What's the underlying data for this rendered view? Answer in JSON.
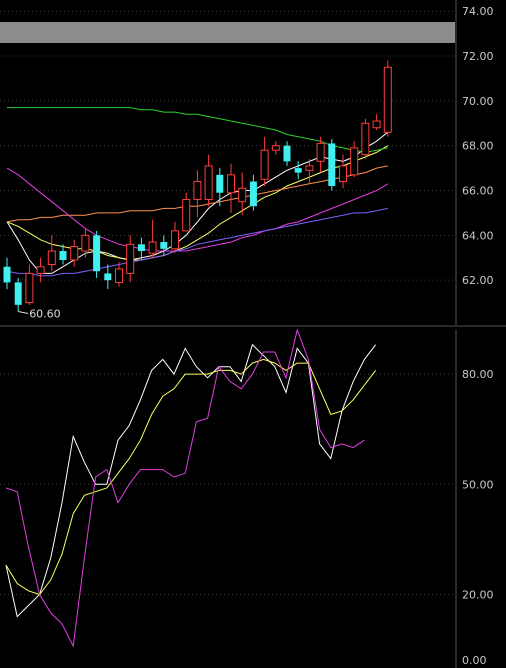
{
  "chart_data": [
    {
      "type": "candlestick",
      "title": "",
      "ylim": [
        60.0,
        74.5
      ],
      "yticks": [
        "74.00",
        "72.00",
        "70.00",
        "68.00",
        "66.00",
        "64.00",
        "62.00"
      ],
      "grid": true,
      "low_marker": {
        "label": "60.60",
        "index": 1
      },
      "candles": [
        {
          "o": 62.6,
          "c": 61.9,
          "h": 63.0,
          "l": 61.6
        },
        {
          "o": 61.9,
          "c": 60.9,
          "h": 62.1,
          "l": 60.6
        },
        {
          "o": 61.0,
          "c": 62.3,
          "h": 62.7,
          "l": 60.9
        },
        {
          "o": 62.3,
          "c": 62.6,
          "h": 63.0,
          "l": 61.9
        },
        {
          "o": 62.7,
          "c": 63.3,
          "h": 64.0,
          "l": 62.4
        },
        {
          "o": 63.3,
          "c": 62.9,
          "h": 63.6,
          "l": 62.7
        },
        {
          "o": 62.9,
          "c": 63.5,
          "h": 63.8,
          "l": 62.6
        },
        {
          "o": 63.3,
          "c": 64.0,
          "h": 64.3,
          "l": 63.0
        },
        {
          "o": 64.0,
          "c": 62.4,
          "h": 64.2,
          "l": 62.1
        },
        {
          "o": 62.3,
          "c": 62.0,
          "h": 62.7,
          "l": 61.6
        },
        {
          "o": 61.9,
          "c": 62.5,
          "h": 62.8,
          "l": 61.7
        },
        {
          "o": 62.3,
          "c": 63.6,
          "h": 64.0,
          "l": 61.9
        },
        {
          "o": 63.6,
          "c": 63.3,
          "h": 63.9,
          "l": 62.9
        },
        {
          "o": 63.2,
          "c": 63.7,
          "h": 64.7,
          "l": 63.0
        },
        {
          "o": 63.7,
          "c": 63.4,
          "h": 64.0,
          "l": 63.1
        },
        {
          "o": 63.4,
          "c": 64.2,
          "h": 64.6,
          "l": 63.2
        },
        {
          "o": 64.2,
          "c": 65.6,
          "h": 65.9,
          "l": 64.2
        },
        {
          "o": 65.6,
          "c": 66.4,
          "h": 66.9,
          "l": 64.8
        },
        {
          "o": 65.6,
          "c": 67.1,
          "h": 67.6,
          "l": 65.3
        },
        {
          "o": 66.7,
          "c": 65.9,
          "h": 67.0,
          "l": 65.3
        },
        {
          "o": 65.9,
          "c": 66.7,
          "h": 67.2,
          "l": 65.0
        },
        {
          "o": 65.5,
          "c": 66.1,
          "h": 66.8,
          "l": 64.9
        },
        {
          "o": 66.4,
          "c": 65.3,
          "h": 66.7,
          "l": 65.1
        },
        {
          "o": 66.5,
          "c": 67.8,
          "h": 68.4,
          "l": 66.2
        },
        {
          "o": 67.8,
          "c": 68.0,
          "h": 68.2,
          "l": 67.6
        },
        {
          "o": 68.0,
          "c": 67.3,
          "h": 68.2,
          "l": 67.1
        },
        {
          "o": 67.0,
          "c": 66.8,
          "h": 67.3,
          "l": 66.5
        },
        {
          "o": 66.9,
          "c": 67.1,
          "h": 67.4,
          "l": 66.3
        },
        {
          "o": 67.3,
          "c": 68.1,
          "h": 68.4,
          "l": 66.8
        },
        {
          "o": 68.1,
          "c": 66.2,
          "h": 68.3,
          "l": 66.0
        },
        {
          "o": 66.4,
          "c": 67.1,
          "h": 67.6,
          "l": 66.1
        },
        {
          "o": 66.7,
          "c": 67.9,
          "h": 68.2,
          "l": 66.6
        },
        {
          "o": 67.6,
          "c": 69.0,
          "h": 69.2,
          "l": 67.4
        },
        {
          "o": 68.8,
          "c": 69.1,
          "h": 69.4,
          "l": 68.7
        },
        {
          "o": 68.6,
          "c": 71.5,
          "h": 71.8,
          "l": 68.4
        }
      ],
      "ma": [
        {
          "color": "#ffffff",
          "values": [
            64.6,
            63.8,
            62.9,
            62.3,
            62.3,
            62.6,
            62.9,
            63.2,
            63.3,
            63.2,
            63.0,
            62.9,
            63.0,
            63.1,
            63.3,
            63.6,
            64.0,
            64.6,
            65.2,
            65.6,
            65.9,
            66.0,
            66.0,
            66.3,
            66.6,
            66.9,
            67.1,
            67.3,
            67.5,
            67.4,
            67.3,
            67.5,
            67.9,
            68.2,
            68.6
          ]
        },
        {
          "color": "#ffff60",
          "values": [
            64.6,
            64.4,
            64.1,
            63.8,
            63.6,
            63.5,
            63.4,
            63.4,
            63.3,
            63.1,
            63.0,
            62.9,
            62.9,
            63.0,
            63.1,
            63.3,
            63.5,
            63.8,
            64.1,
            64.5,
            64.8,
            65.1,
            65.4,
            65.7,
            65.9,
            66.2,
            66.4,
            66.6,
            66.8,
            67.0,
            67.1,
            67.3,
            67.5,
            67.7,
            68.0
          ]
        },
        {
          "color": "#ff9050",
          "values": [
            64.6,
            64.7,
            64.7,
            64.8,
            64.8,
            64.9,
            64.9,
            64.9,
            65.0,
            65.0,
            65.0,
            65.1,
            65.1,
            65.1,
            65.2,
            65.2,
            65.3,
            65.3,
            65.4,
            65.5,
            65.6,
            65.7,
            65.8,
            65.9,
            66.0,
            66.1,
            66.2,
            66.3,
            66.4,
            66.5,
            66.6,
            66.7,
            66.8,
            67.0,
            67.1
          ]
        },
        {
          "color": "#e040e0",
          "values": [
            67.0,
            66.7,
            66.3,
            65.9,
            65.5,
            65.1,
            64.7,
            64.3,
            64.0,
            63.8,
            63.6,
            63.5,
            63.4,
            63.3,
            63.3,
            63.3,
            63.3,
            63.4,
            63.5,
            63.6,
            63.7,
            63.9,
            64.0,
            64.2,
            64.3,
            64.5,
            64.6,
            64.8,
            65.0,
            65.2,
            65.4,
            65.6,
            65.8,
            66.0,
            66.3
          ]
        },
        {
          "color": "#8060ff",
          "values": [
            62.4,
            62.3,
            62.3,
            62.2,
            62.2,
            62.3,
            62.3,
            62.4,
            62.5,
            62.6,
            62.7,
            62.8,
            62.9,
            63.0,
            63.1,
            63.3,
            63.4,
            63.6,
            63.7,
            63.8,
            63.9,
            64.0,
            64.1,
            64.2,
            64.3,
            64.4,
            64.5,
            64.6,
            64.7,
            64.8,
            64.9,
            65.0,
            65.0,
            65.1,
            65.2
          ]
        },
        {
          "color": "#30d030",
          "values": [
            69.7,
            69.7,
            69.7,
            69.7,
            69.7,
            69.7,
            69.7,
            69.7,
            69.7,
            69.7,
            69.7,
            69.7,
            69.6,
            69.6,
            69.5,
            69.5,
            69.4,
            69.4,
            69.3,
            69.2,
            69.1,
            69.0,
            68.9,
            68.8,
            68.7,
            68.5,
            68.4,
            68.3,
            68.2,
            68.0,
            67.9,
            67.8,
            67.7,
            67.8,
            67.9
          ]
        }
      ]
    },
    {
      "type": "line",
      "title": "",
      "ylim": [
        0,
        92
      ],
      "yticks": [
        "80.00",
        "50.00",
        "20.00",
        "0.00"
      ],
      "grid": true,
      "series": [
        {
          "color": "#ffffff",
          "values": [
            28,
            14,
            17,
            20,
            30,
            45,
            63,
            56,
            50,
            50,
            62,
            66,
            73,
            81,
            84,
            80,
            87,
            82,
            79,
            82,
            82,
            78,
            88,
            85,
            82,
            75,
            87,
            83,
            61,
            57,
            70,
            78,
            84,
            88
          ]
        },
        {
          "color": "#ffff60",
          "values": [
            28,
            23,
            21,
            20,
            24,
            31,
            42,
            47,
            48,
            49,
            53,
            57,
            62,
            69,
            74,
            76,
            80,
            80,
            80,
            81,
            81,
            80,
            83,
            84,
            83,
            81,
            83,
            83,
            76,
            69,
            70,
            73,
            77,
            81
          ]
        },
        {
          "color": "#e040e0",
          "values": [
            49,
            48,
            33,
            20,
            15,
            12,
            6,
            30,
            52,
            54,
            45,
            50,
            54,
            54,
            54,
            52,
            53,
            67,
            68,
            82,
            78,
            76,
            80,
            86,
            86,
            79,
            92,
            84,
            65,
            60,
            61,
            60,
            62
          ]
        }
      ]
    }
  ]
}
